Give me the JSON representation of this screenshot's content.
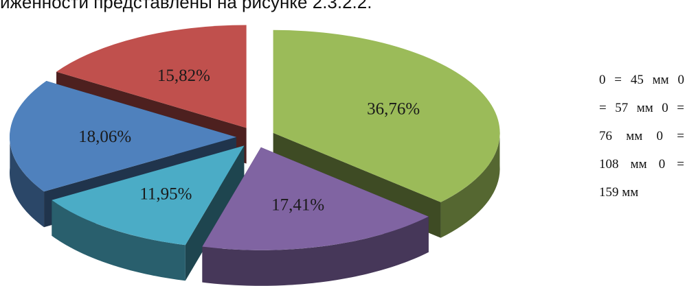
{
  "document": {
    "caption_fragment": "ижённости представлены на рисунке 2.3.2.2."
  },
  "legend": {
    "lines": [
      "0 = 45 мм 0",
      "= 57 мм 0 =",
      "76 мм 0 =",
      "108 мм 0 =",
      "159 мм"
    ]
  },
  "colors": {
    "green": "#9BBB59",
    "purple": "#8064A2",
    "cyan": "#4BACC6",
    "blue": "#4F81BD",
    "red": "#C0504D"
  },
  "chart_data": {
    "type": "pie",
    "style": "3d-exploded",
    "slices": [
      {
        "value": 36.76,
        "label": "36,76%",
        "color": "#9BBB59"
      },
      {
        "value": 17.41,
        "label": "17,41%",
        "color": "#8064A2"
      },
      {
        "value": 11.95,
        "label": "11,95%",
        "color": "#4BACC6"
      },
      {
        "value": 18.06,
        "label": "18,06%",
        "color": "#4F81BD"
      },
      {
        "value": 15.82,
        "label": "15,82%",
        "color": "#C0504D"
      }
    ]
  }
}
